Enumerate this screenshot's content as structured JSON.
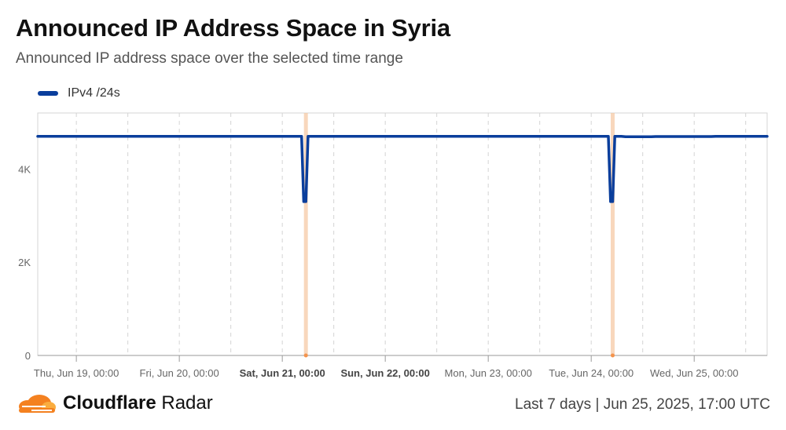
{
  "header": {
    "title": "Announced IP Address Space in Syria",
    "subtitle": "Announced IP address space over the selected time range"
  },
  "legend": {
    "label": "IPv4 /24s"
  },
  "colors": {
    "series": "#0a3e9c",
    "event": "#f6c9a6",
    "event_marker": "#f4934c",
    "grid": "#d4d4d4",
    "axis": "#9a9a9a"
  },
  "chart_data": {
    "type": "line",
    "title": "Announced IP Address Space in Syria",
    "subtitle": "Announced IP address space over the selected time range",
    "x_range": [
      "2025-06-18T15:00",
      "2025-06-25T17:00"
    ],
    "xticks": [
      {
        "t": "2025-06-19T00:00",
        "label": "Thu, Jun 19, 00:00",
        "bold": false
      },
      {
        "t": "2025-06-20T00:00",
        "label": "Fri, Jun 20, 00:00",
        "bold": false
      },
      {
        "t": "2025-06-21T00:00",
        "label": "Sat, Jun 21, 00:00",
        "bold": true
      },
      {
        "t": "2025-06-22T00:00",
        "label": "Sun, Jun 22, 00:00",
        "bold": true
      },
      {
        "t": "2025-06-23T00:00",
        "label": "Mon, Jun 23, 00:00",
        "bold": false
      },
      {
        "t": "2025-06-24T00:00",
        "label": "Tue, Jun 24, 00:00",
        "bold": false
      },
      {
        "t": "2025-06-25T00:00",
        "label": "Wed, Jun 25, 00:00",
        "bold": false
      }
    ],
    "minor_grid": [
      "2025-06-19T12:00",
      "2025-06-20T12:00",
      "2025-06-21T12:00",
      "2025-06-22T12:00",
      "2025-06-23T12:00",
      "2025-06-24T12:00",
      "2025-06-25T12:00"
    ],
    "ylim": [
      0,
      5200
    ],
    "yticks": [
      {
        "v": 0,
        "label": "0"
      },
      {
        "v": 2000,
        "label": "2K"
      },
      {
        "v": 4000,
        "label": "4K"
      }
    ],
    "events": [
      "2025-06-21T05:30",
      "2025-06-24T05:00"
    ],
    "series": [
      {
        "name": "IPv4 /24s",
        "points": [
          [
            "2025-06-18T15:00",
            4700
          ],
          [
            "2025-06-21T04:30",
            4700
          ],
          [
            "2025-06-21T05:00",
            3300
          ],
          [
            "2025-06-21T05:30",
            3300
          ],
          [
            "2025-06-21T06:00",
            4700
          ],
          [
            "2025-06-24T04:00",
            4700
          ],
          [
            "2025-06-24T04:30",
            3300
          ],
          [
            "2025-06-24T05:00",
            3300
          ],
          [
            "2025-06-24T05:30",
            4700
          ],
          [
            "2025-06-24T07:00",
            4700
          ],
          [
            "2025-06-24T08:00",
            4690
          ],
          [
            "2025-06-24T14:00",
            4690
          ],
          [
            "2025-06-24T15:00",
            4695
          ],
          [
            "2025-06-25T04:00",
            4695
          ],
          [
            "2025-06-25T05:00",
            4700
          ],
          [
            "2025-06-25T17:00",
            4700
          ]
        ]
      }
    ]
  },
  "footer": {
    "brand_bold": "Cloudflare",
    "brand_rest": "Radar",
    "range": "Last 7 days",
    "separator": "|",
    "timestamp": "Jun 25, 2025, 17:00 UTC"
  }
}
